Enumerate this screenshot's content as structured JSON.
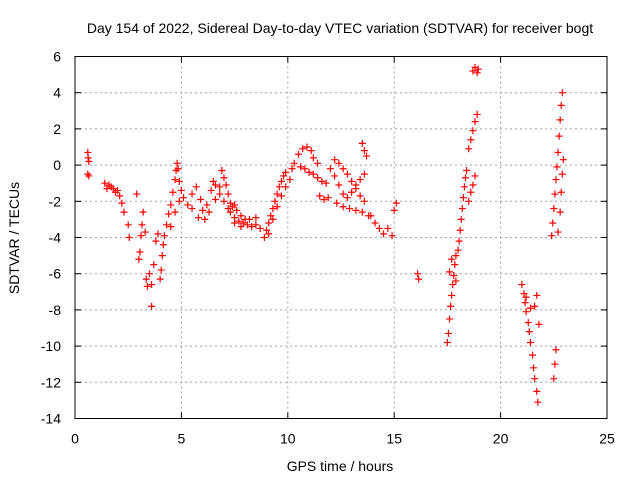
{
  "chart_data": {
    "type": "scatter",
    "title": "Day 154 of 2022, Sidereal Day-to-day VTEC variation (SDTVAR) for receiver bogt",
    "xlabel": "GPS time / hours",
    "ylabel": "SDTVAR / TECUs",
    "xlim": [
      0,
      25
    ],
    "ylim": [
      -14,
      6
    ],
    "x_ticks": [
      0,
      5,
      10,
      15,
      20,
      25
    ],
    "y_ticks": [
      -14,
      -12,
      -10,
      -8,
      -6,
      -4,
      -2,
      0,
      2,
      4,
      6
    ],
    "grid": true,
    "marker": "+",
    "color": "#ff0000",
    "series": [
      {
        "name": "SDTVAR",
        "points": [
          [
            0.6,
            0.7
          ],
          [
            0.62,
            0.4
          ],
          [
            0.65,
            0.2
          ],
          [
            0.6,
            -0.5
          ],
          [
            0.65,
            -0.6
          ],
          [
            1.4,
            -1.0
          ],
          [
            1.5,
            -1.3
          ],
          [
            1.6,
            -1.1
          ],
          [
            1.7,
            -1.2
          ],
          [
            1.8,
            -1.3
          ],
          [
            1.9,
            -1.5
          ],
          [
            2.0,
            -1.4
          ],
          [
            2.1,
            -1.7
          ],
          [
            2.2,
            -2.1
          ],
          [
            2.3,
            -2.6
          ],
          [
            2.5,
            -3.3
          ],
          [
            2.55,
            -4.0
          ],
          [
            2.9,
            -1.6
          ],
          [
            3.0,
            -5.2
          ],
          [
            3.05,
            -4.8
          ],
          [
            3.1,
            -3.9
          ],
          [
            3.15,
            -3.3
          ],
          [
            3.2,
            -2.6
          ],
          [
            3.3,
            -3.7
          ],
          [
            3.35,
            -6.3
          ],
          [
            3.4,
            -6.7
          ],
          [
            3.5,
            -6.0
          ],
          [
            3.6,
            -6.6
          ],
          [
            3.6,
            -7.8
          ],
          [
            3.7,
            -5.5
          ],
          [
            3.8,
            -4.2
          ],
          [
            3.9,
            -3.8
          ],
          [
            4.0,
            -6.3
          ],
          [
            4.05,
            -5.8
          ],
          [
            4.1,
            -5.0
          ],
          [
            4.15,
            -4.4
          ],
          [
            4.2,
            -3.9
          ],
          [
            4.3,
            -3.3
          ],
          [
            4.4,
            -2.7
          ],
          [
            4.5,
            -2.2
          ],
          [
            4.6,
            -1.5
          ],
          [
            4.7,
            -0.8
          ],
          [
            4.75,
            -0.3
          ],
          [
            4.8,
            0.1
          ],
          [
            4.85,
            -0.2
          ],
          [
            4.9,
            -0.9
          ],
          [
            5.0,
            -1.4
          ],
          [
            4.5,
            -3.4
          ],
          [
            4.7,
            -2.6
          ],
          [
            4.9,
            -2.0
          ],
          [
            5.1,
            -1.8
          ],
          [
            5.3,
            -2.2
          ],
          [
            5.5,
            -1.6
          ],
          [
            5.7,
            -1.2
          ],
          [
            5.9,
            -1.9
          ],
          [
            6.0,
            -2.5
          ],
          [
            6.2,
            -2.2
          ],
          [
            6.4,
            -1.4
          ],
          [
            6.5,
            -0.9
          ],
          [
            5.5,
            -2.4
          ],
          [
            5.8,
            -2.9
          ],
          [
            6.1,
            -3.0
          ],
          [
            6.3,
            -2.6
          ],
          [
            6.6,
            -1.9
          ],
          [
            6.8,
            -1.2
          ],
          [
            6.9,
            -0.3
          ],
          [
            7.0,
            -0.7
          ],
          [
            7.1,
            -1.1
          ],
          [
            7.2,
            -1.6
          ],
          [
            7.3,
            -2.1
          ],
          [
            7.4,
            -2.3
          ],
          [
            7.5,
            -2.2
          ],
          [
            7.6,
            -2.5
          ],
          [
            7.8,
            -2.8
          ],
          [
            8.0,
            -3.0
          ],
          [
            7.3,
            -2.6
          ],
          [
            7.5,
            -2.9
          ],
          [
            7.7,
            -3.1
          ],
          [
            7.9,
            -3.2
          ],
          [
            8.1,
            -3.3
          ],
          [
            8.3,
            -3.4
          ],
          [
            8.5,
            -3.3
          ],
          [
            8.7,
            -3.5
          ],
          [
            6.6,
            -1.1
          ],
          [
            6.8,
            -1.6
          ],
          [
            7.0,
            -2.0
          ],
          [
            7.2,
            -2.4
          ],
          [
            7.5,
            -3.2
          ],
          [
            7.8,
            -3.4
          ],
          [
            8.2,
            -3.0
          ],
          [
            8.5,
            -2.9
          ],
          [
            8.9,
            -4.0
          ],
          [
            9.0,
            -3.6
          ],
          [
            9.1,
            -3.2
          ],
          [
            9.2,
            -2.8
          ],
          [
            9.3,
            -2.4
          ],
          [
            9.4,
            -2.0
          ],
          [
            9.5,
            -1.6
          ],
          [
            9.6,
            -1.2
          ],
          [
            9.7,
            -0.9
          ],
          [
            9.8,
            -0.6
          ],
          [
            9.9,
            -0.4
          ],
          [
            9.1,
            -3.8
          ],
          [
            9.3,
            -3.0
          ],
          [
            9.5,
            -2.3
          ],
          [
            9.7,
            -1.7
          ],
          [
            9.9,
            -1.2
          ],
          [
            10.1,
            -0.8
          ],
          [
            10.2,
            -0.2
          ],
          [
            10.3,
            0.1
          ],
          [
            10.5,
            0.6
          ],
          [
            10.7,
            0.9
          ],
          [
            10.9,
            1.0
          ],
          [
            11.1,
            0.8
          ],
          [
            11.2,
            0.4
          ],
          [
            11.4,
            0.1
          ],
          [
            10.6,
            -0.1
          ],
          [
            10.8,
            -0.2
          ],
          [
            11.0,
            -0.4
          ],
          [
            11.2,
            -0.5
          ],
          [
            11.4,
            -0.7
          ],
          [
            11.6,
            -0.9
          ],
          [
            11.8,
            -1.0
          ],
          [
            11.5,
            -1.7
          ],
          [
            11.7,
            -1.9
          ],
          [
            11.9,
            -1.8
          ],
          [
            12.0,
            -0.2
          ],
          [
            12.2,
            -0.6
          ],
          [
            12.4,
            -1.1
          ],
          [
            12.6,
            -1.6
          ],
          [
            12.8,
            -1.8
          ],
          [
            13.0,
            -1.5
          ],
          [
            13.2,
            -1.1
          ],
          [
            13.4,
            -0.8
          ],
          [
            13.6,
            -0.5
          ],
          [
            12.2,
            0.3
          ],
          [
            12.4,
            0.1
          ],
          [
            12.6,
            -0.2
          ],
          [
            12.8,
            -0.5
          ],
          [
            13.0,
            -0.9
          ],
          [
            13.2,
            -1.3
          ],
          [
            13.4,
            -1.7
          ],
          [
            13.6,
            -2.0
          ],
          [
            12.3,
            -2.1
          ],
          [
            12.6,
            -2.3
          ],
          [
            12.9,
            -2.4
          ],
          [
            13.2,
            -2.5
          ],
          [
            13.5,
            -2.6
          ],
          [
            13.8,
            -2.8
          ],
          [
            13.5,
            1.2
          ],
          [
            13.6,
            0.8
          ],
          [
            13.7,
            0.5
          ],
          [
            13.9,
            -2.8
          ],
          [
            14.1,
            -3.2
          ],
          [
            14.3,
            -3.5
          ],
          [
            14.5,
            -3.8
          ],
          [
            14.7,
            -3.5
          ],
          [
            14.9,
            -3.9
          ],
          [
            15.0,
            -2.5
          ],
          [
            15.1,
            -2.1
          ],
          [
            16.1,
            -6.0
          ],
          [
            16.15,
            -6.3
          ],
          [
            17.5,
            -9.8
          ],
          [
            17.55,
            -9.3
          ],
          [
            17.6,
            -8.5
          ],
          [
            17.65,
            -7.8
          ],
          [
            17.7,
            -7.2
          ],
          [
            17.75,
            -6.6
          ],
          [
            17.8,
            -6.1
          ],
          [
            17.85,
            -5.5
          ],
          [
            17.9,
            -5.0
          ],
          [
            17.6,
            -5.9
          ],
          [
            17.7,
            -5.2
          ],
          [
            17.9,
            -6.4
          ],
          [
            18.0,
            -4.7
          ],
          [
            18.05,
            -4.2
          ],
          [
            18.1,
            -3.6
          ],
          [
            18.15,
            -3.0
          ],
          [
            18.2,
            -2.4
          ],
          [
            18.25,
            -1.8
          ],
          [
            18.3,
            -1.2
          ],
          [
            18.35,
            -0.7
          ],
          [
            18.4,
            -0.3
          ],
          [
            18.5,
            0.9
          ],
          [
            18.6,
            1.4
          ],
          [
            18.7,
            1.9
          ],
          [
            18.8,
            2.4
          ],
          [
            18.9,
            2.8
          ],
          [
            18.5,
            -2.0
          ],
          [
            18.6,
            -1.5
          ],
          [
            18.7,
            -1.1
          ],
          [
            18.8,
            -0.6
          ],
          [
            18.7,
            5.2
          ],
          [
            18.8,
            5.4
          ],
          [
            18.9,
            5.1
          ],
          [
            18.95,
            5.3
          ],
          [
            21.0,
            -6.6
          ],
          [
            21.1,
            -7.1
          ],
          [
            21.15,
            -7.6
          ],
          [
            21.2,
            -8.1
          ],
          [
            21.3,
            -8.7
          ],
          [
            21.35,
            -9.2
          ],
          [
            21.4,
            -9.8
          ],
          [
            21.5,
            -10.5
          ],
          [
            21.55,
            -11.2
          ],
          [
            21.6,
            -11.8
          ],
          [
            21.7,
            -12.5
          ],
          [
            21.75,
            -13.1
          ],
          [
            21.2,
            -7.3
          ],
          [
            21.4,
            -7.9
          ],
          [
            21.6,
            -7.8
          ],
          [
            21.7,
            -7.2
          ],
          [
            21.8,
            -8.8
          ],
          [
            22.5,
            -11.8
          ],
          [
            22.55,
            -11.0
          ],
          [
            22.6,
            -10.2
          ],
          [
            22.4,
            -3.9
          ],
          [
            22.45,
            -3.2
          ],
          [
            22.5,
            -2.4
          ],
          [
            22.55,
            -1.6
          ],
          [
            22.6,
            -0.8
          ],
          [
            22.65,
            -0.1
          ],
          [
            22.7,
            0.7
          ],
          [
            22.75,
            1.6
          ],
          [
            22.8,
            2.5
          ],
          [
            22.85,
            3.3
          ],
          [
            22.9,
            4.0
          ],
          [
            22.7,
            -3.7
          ],
          [
            22.8,
            -2.6
          ],
          [
            22.85,
            -1.5
          ],
          [
            22.9,
            -0.5
          ],
          [
            22.95,
            0.3
          ]
        ]
      }
    ]
  }
}
